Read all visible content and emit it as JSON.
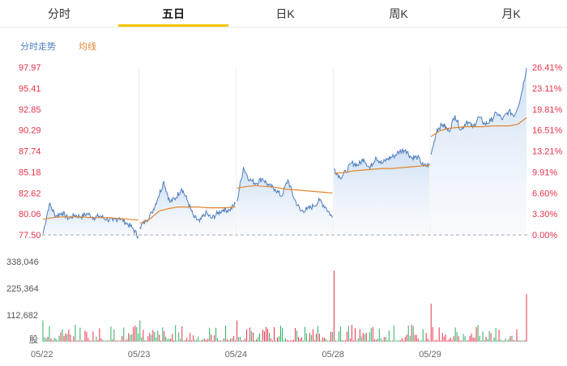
{
  "tabs": [
    {
      "label": "分时",
      "active": false
    },
    {
      "label": "五日",
      "active": true
    },
    {
      "label": "日K",
      "active": false
    },
    {
      "label": "周K",
      "active": false
    },
    {
      "label": "月K",
      "active": false
    }
  ],
  "legend": {
    "price": "分时走势",
    "avg": "均线"
  },
  "colors": {
    "accent": "#f7c600",
    "price_line": "#4d7dbd",
    "avg_line": "#e0862d",
    "up": "#e5334b",
    "down": "#2eaf62",
    "axis_red": "#e5334b"
  },
  "chart_data": {
    "type": "line",
    "price_ticks": [
      "97.97",
      "95.41",
      "92.85",
      "90.29",
      "87.74",
      "85.18",
      "82.62",
      "80.06",
      "77.50"
    ],
    "pct_ticks": [
      "26.41%",
      "23.11%",
      "19.81%",
      "16.51%",
      "13.21%",
      "9.91%",
      "6.60%",
      "3.30%",
      "0.00%"
    ],
    "ylim": [
      77.5,
      97.97
    ],
    "volume_ticks": [
      "338,046",
      "225,364",
      "112,682"
    ],
    "volume_unit": "股",
    "dates": [
      "05/22",
      "05/23",
      "05/24",
      "05/28",
      "05/29"
    ],
    "days": [
      {
        "price": [
          77.6,
          81.3,
          79.8,
          80.2,
          79.5,
          79.9,
          79.7,
          80.1,
          79.6,
          79.8,
          79.4,
          79.2,
          79.6,
          79.0,
          78.4,
          77.3
        ],
        "avg": [
          79.4,
          79.6,
          79.7,
          79.7,
          79.7,
          79.6,
          79.6,
          79.6,
          79.5,
          79.4,
          79.3
        ]
      },
      {
        "price": [
          78.4,
          79.2,
          80.2,
          82.0,
          84.0,
          81.5,
          82.0,
          83.2,
          81.6,
          79.7,
          79.1,
          80.2,
          79.5,
          80.1,
          80.6,
          80.5,
          81.3
        ],
        "avg": [
          78.9,
          79.4,
          80.4,
          80.7,
          80.9,
          80.9,
          80.9,
          80.8,
          80.8,
          80.8,
          80.9
        ]
      },
      {
        "price": [
          81.6,
          85.7,
          84.2,
          83.8,
          84.4,
          83.5,
          83.1,
          82.2,
          84.2,
          81.9,
          80.4,
          80.6,
          81.0,
          81.7,
          80.8,
          79.6
        ],
        "avg": [
          83.2,
          83.4,
          83.5,
          83.4,
          83.3,
          83.1,
          83.0,
          82.9,
          82.8,
          82.7,
          82.6
        ]
      },
      {
        "price": [
          85.6,
          84.5,
          85.2,
          86.3,
          86.0,
          86.8,
          85.6,
          87.0,
          86.2,
          86.8,
          87.1,
          87.7,
          87.9,
          86.9,
          87.0,
          85.9,
          86.0
        ],
        "avg": [
          85.0,
          85.1,
          85.3,
          85.4,
          85.5,
          85.6,
          85.6,
          85.7,
          85.8,
          85.9,
          86.0
        ]
      },
      {
        "price": [
          87.3,
          90.4,
          91.0,
          90.1,
          92.1,
          90.3,
          91.4,
          90.6,
          91.9,
          91.0,
          91.4,
          92.4,
          91.6,
          92.6,
          92.1,
          94.2,
          97.9
        ],
        "avg": [
          89.5,
          90.2,
          90.5,
          90.6,
          90.7,
          90.7,
          90.7,
          90.8,
          90.8,
          90.8,
          91.0,
          91.8
        ]
      }
    ]
  }
}
